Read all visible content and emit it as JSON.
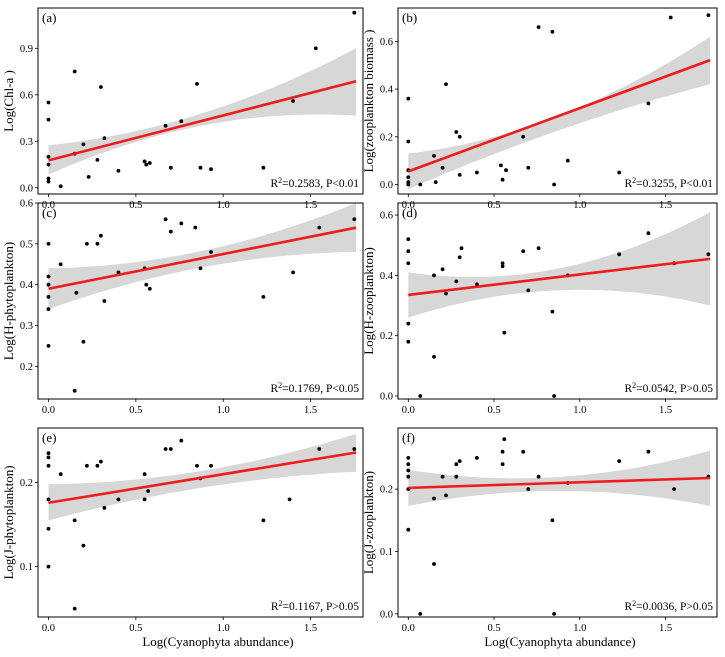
{
  "figure": {
    "shared_xlabel_left": "Log(Cyanophyta abundance)",
    "shared_xlabel_right": "Log(Cyanophyta abundance)"
  },
  "chart_data": [
    {
      "type": "scatter",
      "tag": "(a)",
      "title": "",
      "xlabel": "Log(Cyanophyta abundance)",
      "ylabel": "Log(Chl-a )",
      "xlim": [
        -0.06,
        1.8
      ],
      "ylim": [
        -0.04,
        1.16
      ],
      "xticks": [
        {
          "v": 0,
          "label": "0.0"
        },
        {
          "v": 0.5,
          "label": "0.5"
        },
        {
          "v": 1.0,
          "label": "1.0"
        },
        {
          "v": 1.5,
          "label": "1.5"
        }
      ],
      "yticks": [
        {
          "v": 0,
          "label": "0.0"
        },
        {
          "v": 0.3,
          "label": "0.3"
        },
        {
          "v": 0.6,
          "label": "0.6"
        },
        {
          "v": 0.9,
          "label": "0.9"
        }
      ],
      "points": [
        [
          0,
          0.55
        ],
        [
          0,
          0.44
        ],
        [
          0,
          0.2
        ],
        [
          0,
          0.15
        ],
        [
          0,
          0.06
        ],
        [
          0,
          0.04
        ],
        [
          0.07,
          0.01
        ],
        [
          0.15,
          0.75
        ],
        [
          0.15,
          0.22
        ],
        [
          0.2,
          0.28
        ],
        [
          0.23,
          0.07
        ],
        [
          0.28,
          0.18
        ],
        [
          0.3,
          0.65
        ],
        [
          0.32,
          0.32
        ],
        [
          0.4,
          0.11
        ],
        [
          0.55,
          0.17
        ],
        [
          0.56,
          0.15
        ],
        [
          0.58,
          0.16
        ],
        [
          0.67,
          0.4
        ],
        [
          0.7,
          0.13
        ],
        [
          0.76,
          0.43
        ],
        [
          0.85,
          0.67
        ],
        [
          0.87,
          0.13
        ],
        [
          0.93,
          0.12
        ],
        [
          1.23,
          0.13
        ],
        [
          1.4,
          0.56
        ],
        [
          1.53,
          0.9
        ],
        [
          1.75,
          1.13
        ]
      ],
      "fit": {
        "intercept": 0.177,
        "slope": 0.29
      },
      "ci": {
        "left": [
          0.085,
          0.275
        ],
        "mid": [
          0.395,
          0.47
        ],
        "right": [
          0.465,
          0.9
        ]
      },
      "stat_sup": "2",
      "stat_pre": "R",
      "stat_post": "=0.2583, P<0.01"
    },
    {
      "type": "scatter",
      "tag": "(b)",
      "title": "",
      "xlabel": "Log(Cyanophyta abundance)",
      "ylabel": "Log(zooplankton biomass )",
      "xlim": [
        -0.06,
        1.8
      ],
      "ylim": [
        -0.04,
        0.74
      ],
      "xticks": [
        {
          "v": 0,
          "label": "0.0"
        },
        {
          "v": 0.5,
          "label": "0.5"
        },
        {
          "v": 1.0,
          "label": "1.0"
        },
        {
          "v": 1.5,
          "label": "1.5"
        }
      ],
      "yticks": [
        {
          "v": 0,
          "label": "0.0"
        },
        {
          "v": 0.2,
          "label": "0.2"
        },
        {
          "v": 0.4,
          "label": "0.4"
        },
        {
          "v": 0.6,
          "label": "0.6"
        }
      ],
      "points": [
        [
          0,
          0.36
        ],
        [
          0,
          0.18
        ],
        [
          0,
          0.06
        ],
        [
          0,
          0.03
        ],
        [
          0,
          0.01
        ],
        [
          0,
          0.0
        ],
        [
          0.07,
          0.0
        ],
        [
          0.15,
          0.12
        ],
        [
          0.16,
          0.01
        ],
        [
          0.2,
          0.07
        ],
        [
          0.22,
          0.42
        ],
        [
          0.28,
          0.22
        ],
        [
          0.3,
          0.2
        ],
        [
          0.3,
          0.04
        ],
        [
          0.4,
          0.05
        ],
        [
          0.54,
          0.08
        ],
        [
          0.55,
          0.02
        ],
        [
          0.57,
          0.06
        ],
        [
          0.67,
          0.2
        ],
        [
          0.7,
          0.07
        ],
        [
          0.76,
          0.66
        ],
        [
          0.84,
          0.64
        ],
        [
          0.85,
          0.0
        ],
        [
          0.93,
          0.1
        ],
        [
          1.23,
          0.05
        ],
        [
          1.4,
          0.34
        ],
        [
          1.53,
          0.7
        ],
        [
          1.75,
          0.71
        ]
      ],
      "fit": {
        "intercept": 0.055,
        "slope": 0.265
      },
      "ci": {
        "left": [
          -0.02,
          0.13
        ],
        "mid": [
          0.22,
          0.28
        ],
        "right": [
          0.42,
          0.62
        ]
      },
      "stat_sup": "2",
      "stat_pre": "R",
      "stat_post": "=0.3255, P<0.01"
    },
    {
      "type": "scatter",
      "tag": "(c)",
      "title": "",
      "xlabel": "Log(Cyanophyta abundance)",
      "ylabel": "Log(H-phytoplankton)",
      "xlim": [
        -0.06,
        1.8
      ],
      "ylim": [
        0.12,
        0.6
      ],
      "xticks": [
        {
          "v": 0,
          "label": "0.0"
        },
        {
          "v": 0.5,
          "label": "0.5"
        },
        {
          "v": 1.0,
          "label": "1.0"
        },
        {
          "v": 1.5,
          "label": "1.5"
        }
      ],
      "yticks": [
        {
          "v": 0.2,
          "label": "0.2"
        },
        {
          "v": 0.3,
          "label": "0.3"
        },
        {
          "v": 0.4,
          "label": "0.4"
        },
        {
          "v": 0.5,
          "label": "0.5"
        },
        {
          "v": 0.6,
          "label": "0.6"
        }
      ],
      "points": [
        [
          0,
          0.5
        ],
        [
          0,
          0.42
        ],
        [
          0,
          0.4
        ],
        [
          0,
          0.37
        ],
        [
          0,
          0.34
        ],
        [
          0,
          0.25
        ],
        [
          0.07,
          0.45
        ],
        [
          0.15,
          0.14
        ],
        [
          0.16,
          0.38
        ],
        [
          0.2,
          0.26
        ],
        [
          0.22,
          0.5
        ],
        [
          0.28,
          0.5
        ],
        [
          0.3,
          0.52
        ],
        [
          0.32,
          0.36
        ],
        [
          0.4,
          0.43
        ],
        [
          0.55,
          0.44
        ],
        [
          0.56,
          0.4
        ],
        [
          0.58,
          0.39
        ],
        [
          0.67,
          0.56
        ],
        [
          0.7,
          0.53
        ],
        [
          0.76,
          0.55
        ],
        [
          0.84,
          0.54
        ],
        [
          0.87,
          0.44
        ],
        [
          0.93,
          0.48
        ],
        [
          1.23,
          0.37
        ],
        [
          1.4,
          0.43
        ],
        [
          1.55,
          0.54
        ],
        [
          1.75,
          0.56
        ]
      ],
      "fit": {
        "intercept": 0.39,
        "slope": 0.085
      },
      "ci": {
        "left": [
          0.34,
          0.44
        ],
        "mid": [
          0.44,
          0.48
        ],
        "right": [
          0.48,
          0.6
        ]
      },
      "stat_sup": "2",
      "stat_pre": "R",
      "stat_post": "=0.1769, P<0.05"
    },
    {
      "type": "scatter",
      "tag": "(d)",
      "title": "",
      "xlabel": "Log(Cyanophyta abundance)",
      "ylabel": "Log(H-zooplankton)",
      "xlim": [
        -0.06,
        1.8
      ],
      "ylim": [
        -0.01,
        0.64
      ],
      "xticks": [
        {
          "v": 0,
          "label": "0.0"
        },
        {
          "v": 0.5,
          "label": "0.5"
        },
        {
          "v": 1.0,
          "label": "1.0"
        },
        {
          "v": 1.5,
          "label": "1.5"
        }
      ],
      "yticks": [
        {
          "v": 0,
          "label": "0.0"
        },
        {
          "v": 0.2,
          "label": "0.2"
        },
        {
          "v": 0.4,
          "label": "0.4"
        },
        {
          "v": 0.6,
          "label": "0.6"
        }
      ],
      "points": [
        [
          0,
          0.52
        ],
        [
          0,
          0.48
        ],
        [
          0,
          0.44
        ],
        [
          0,
          0.24
        ],
        [
          0,
          0.18
        ],
        [
          0.07,
          0.0
        ],
        [
          0.15,
          0.4
        ],
        [
          0.15,
          0.13
        ],
        [
          0.2,
          0.42
        ],
        [
          0.22,
          0.34
        ],
        [
          0.28,
          0.38
        ],
        [
          0.3,
          0.46
        ],
        [
          0.31,
          0.49
        ],
        [
          0.4,
          0.37
        ],
        [
          0.55,
          0.44
        ],
        [
          0.55,
          0.43
        ],
        [
          0.56,
          0.21
        ],
        [
          0.67,
          0.48
        ],
        [
          0.7,
          0.35
        ],
        [
          0.76,
          0.49
        ],
        [
          0.84,
          0.28
        ],
        [
          0.85,
          0.0
        ],
        [
          0.93,
          0.4
        ],
        [
          1.23,
          0.47
        ],
        [
          1.4,
          0.54
        ],
        [
          1.55,
          0.44
        ],
        [
          1.75,
          0.47
        ]
      ],
      "fit": {
        "intercept": 0.335,
        "slope": 0.068
      },
      "ci": {
        "left": [
          0.26,
          0.41
        ],
        "mid": [
          0.35,
          0.42
        ],
        "right": [
          0.3,
          0.61
        ]
      },
      "stat_sup": "2",
      "stat_pre": "R",
      "stat_post": "=0.0542, P>0.05"
    },
    {
      "type": "scatter",
      "tag": "(e)",
      "title": "",
      "xlabel": "Log(Cyanophyta abundance)",
      "ylabel": "Log(J-phytoplankton)",
      "xlim": [
        -0.06,
        1.8
      ],
      "ylim": [
        0.04,
        0.265
      ],
      "xticks": [
        {
          "v": 0,
          "label": "0.0"
        },
        {
          "v": 0.5,
          "label": "0.5"
        },
        {
          "v": 1.0,
          "label": "1.0"
        },
        {
          "v": 1.5,
          "label": "1.5"
        }
      ],
      "yticks": [
        {
          "v": 0.1,
          "label": "0.1"
        },
        {
          "v": 0.2,
          "label": "0.2"
        }
      ],
      "points": [
        [
          0,
          0.235
        ],
        [
          0,
          0.23
        ],
        [
          0,
          0.22
        ],
        [
          0,
          0.18
        ],
        [
          0,
          0.145
        ],
        [
          0,
          0.1
        ],
        [
          0.07,
          0.21
        ],
        [
          0.15,
          0.155
        ],
        [
          0.15,
          0.05
        ],
        [
          0.2,
          0.125
        ],
        [
          0.22,
          0.22
        ],
        [
          0.28,
          0.22
        ],
        [
          0.3,
          0.225
        ],
        [
          0.32,
          0.17
        ],
        [
          0.4,
          0.18
        ],
        [
          0.55,
          0.21
        ],
        [
          0.55,
          0.18
        ],
        [
          0.57,
          0.19
        ],
        [
          0.67,
          0.24
        ],
        [
          0.7,
          0.24
        ],
        [
          0.76,
          0.25
        ],
        [
          0.85,
          0.22
        ],
        [
          0.87,
          0.205
        ],
        [
          0.93,
          0.22
        ],
        [
          1.23,
          0.155
        ],
        [
          1.38,
          0.18
        ],
        [
          1.55,
          0.24
        ],
        [
          1.75,
          0.24
        ]
      ],
      "fit": {
        "intercept": 0.176,
        "slope": 0.034
      },
      "ci": {
        "left": [
          0.155,
          0.198
        ],
        "mid": [
          0.193,
          0.213
        ],
        "right": [
          0.213,
          0.258
        ]
      },
      "stat_sup": "2",
      "stat_pre": "R",
      "stat_post": "=0.1167, P>0.05"
    },
    {
      "type": "scatter",
      "tag": "(f)",
      "title": "",
      "xlabel": "Log(Cyanophyta abundance)",
      "ylabel": "Log(J-zooplankton)",
      "xlim": [
        -0.06,
        1.8
      ],
      "ylim": [
        -0.005,
        0.298
      ],
      "xticks": [
        {
          "v": 0,
          "label": "0.0"
        },
        {
          "v": 0.5,
          "label": "0.5"
        },
        {
          "v": 1.0,
          "label": "1.0"
        },
        {
          "v": 1.5,
          "label": "1.5"
        }
      ],
      "yticks": [
        {
          "v": 0,
          "label": "0.0"
        },
        {
          "v": 0.1,
          "label": "0.1"
        },
        {
          "v": 0.2,
          "label": "0.2"
        }
      ],
      "points": [
        [
          0,
          0.25
        ],
        [
          0,
          0.24
        ],
        [
          0,
          0.23
        ],
        [
          0,
          0.22
        ],
        [
          0,
          0.2
        ],
        [
          0,
          0.135
        ],
        [
          0.07,
          0.0
        ],
        [
          0.15,
          0.08
        ],
        [
          0.15,
          0.185
        ],
        [
          0.2,
          0.22
        ],
        [
          0.22,
          0.19
        ],
        [
          0.28,
          0.22
        ],
        [
          0.28,
          0.24
        ],
        [
          0.3,
          0.245
        ],
        [
          0.4,
          0.25
        ],
        [
          0.55,
          0.26
        ],
        [
          0.55,
          0.24
        ],
        [
          0.56,
          0.28
        ],
        [
          0.67,
          0.26
        ],
        [
          0.7,
          0.2
        ],
        [
          0.76,
          0.22
        ],
        [
          0.84,
          0.15
        ],
        [
          0.85,
          0.0
        ],
        [
          0.93,
          0.21
        ],
        [
          1.23,
          0.245
        ],
        [
          1.4,
          0.26
        ],
        [
          1.55,
          0.2
        ],
        [
          1.75,
          0.22
        ]
      ],
      "fit": {
        "intercept": 0.202,
        "slope": 0.009
      },
      "ci": {
        "left": [
          0.173,
          0.231
        ],
        "mid": [
          0.197,
          0.219
        ],
        "right": [
          0.173,
          0.262
        ]
      },
      "stat_sup": "2",
      "stat_pre": "R",
      "stat_post": "=0.0036, P>0.05"
    }
  ]
}
